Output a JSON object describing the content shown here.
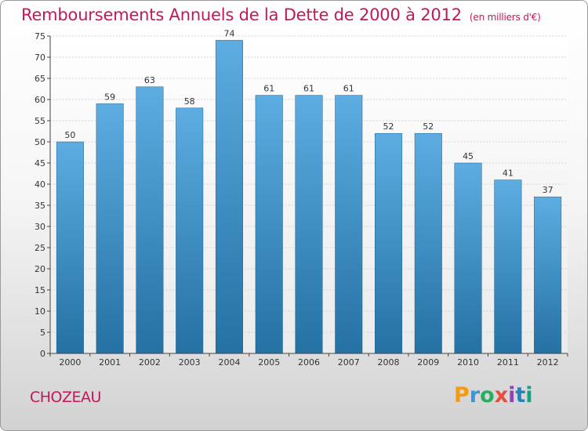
{
  "header": {
    "title": "Remboursements Annuels de la Dette de 2000 à 2012",
    "unit": "(en milliers d'€)"
  },
  "footer": {
    "commune": "CHOZEAU",
    "logo_text": "Proxiti",
    "logo_colors": [
      "#f39c12",
      "#3498db",
      "#27ae60",
      "#e74c3c",
      "#8e44ad",
      "#2980b9",
      "#16a085"
    ]
  },
  "chart_data": {
    "type": "bar",
    "title": "Remboursements Annuels de la Dette de 2000 à 2012",
    "xlabel": "",
    "ylabel": "",
    "categories": [
      "2000",
      "2001",
      "2002",
      "2003",
      "2004",
      "2005",
      "2006",
      "2007",
      "2008",
      "2009",
      "2010",
      "2011",
      "2012"
    ],
    "values": [
      50,
      59,
      63,
      58,
      74,
      61,
      61,
      61,
      52,
      52,
      45,
      41,
      37
    ],
    "ylim": [
      0,
      75
    ],
    "yticks": [
      0,
      5,
      10,
      15,
      20,
      25,
      30,
      35,
      40,
      45,
      50,
      55,
      60,
      65,
      70,
      75
    ],
    "grid": true,
    "bar_color_top": "#5dade2",
    "bar_color_bottom": "#2471a3"
  }
}
